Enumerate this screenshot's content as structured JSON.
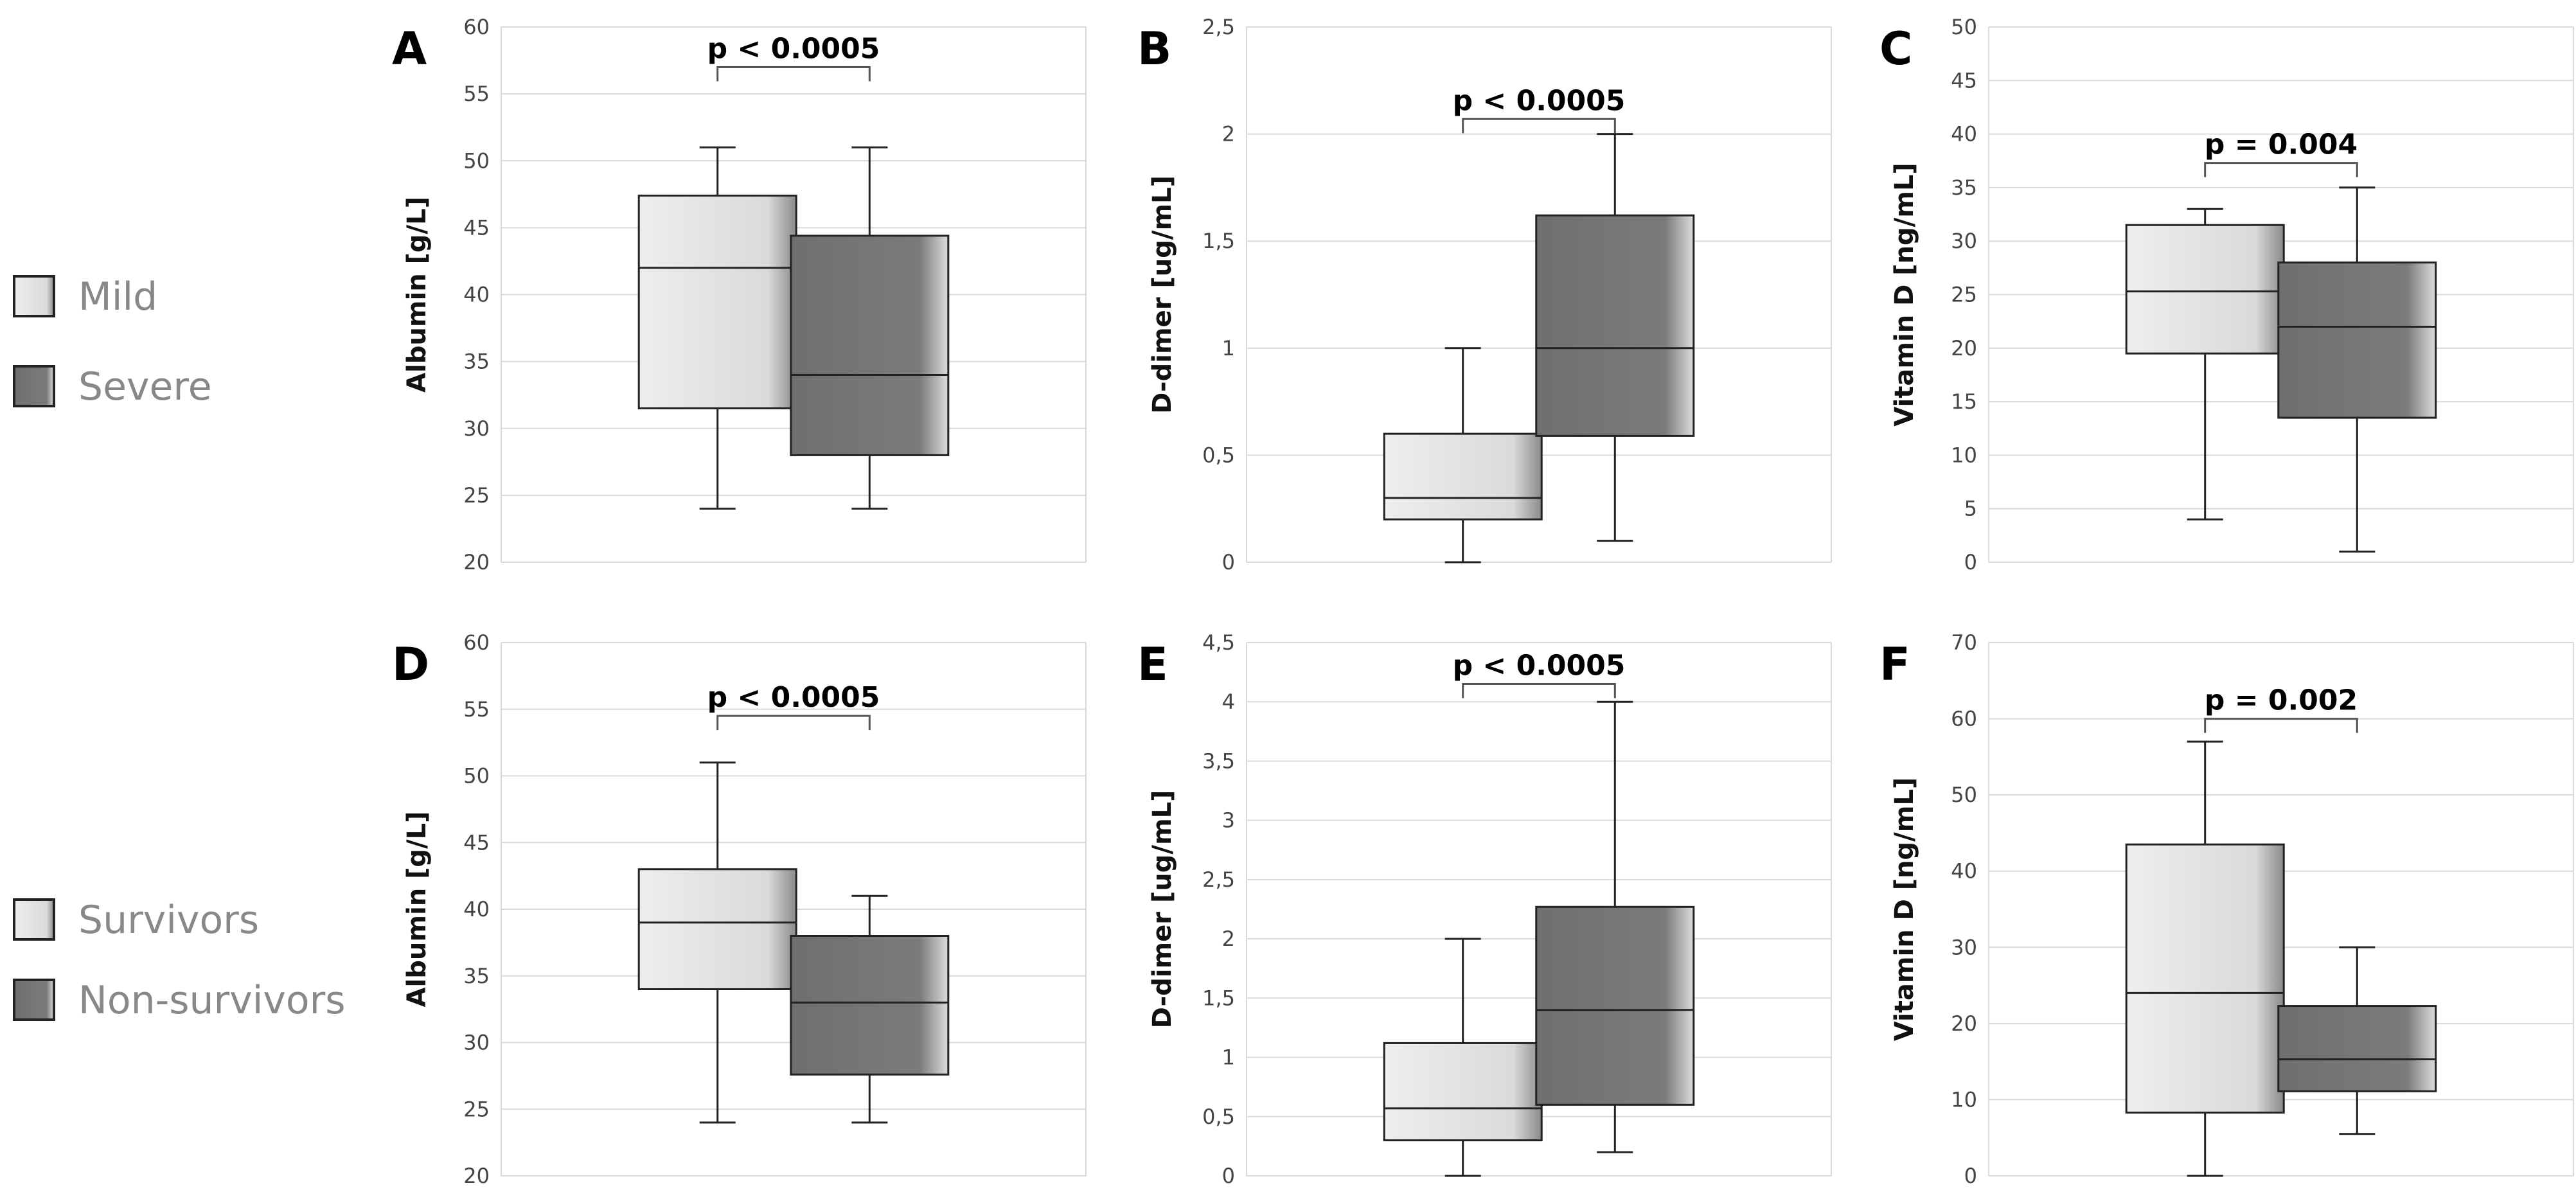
{
  "legends": [
    {
      "items": [
        {
          "label": "Mild",
          "color": "mild"
        },
        {
          "label": "Severe",
          "color": "severe"
        }
      ]
    },
    {
      "items": [
        {
          "label": "Survivors",
          "color": "mild"
        },
        {
          "label": "Non-survivors",
          "color": "severe"
        }
      ]
    }
  ],
  "colors": {
    "mild": "#d9d9d9",
    "severe": "#7a7a7a",
    "edge": "#222222",
    "grid": "#d9d9d9"
  },
  "chart_data": [
    {
      "type": "box",
      "panel_label": "A",
      "ylabel": "Albumin [g/L]",
      "ylim": [
        20,
        60
      ],
      "ticks": [
        "20",
        "25",
        "30",
        "35",
        "40",
        "45",
        "50",
        "55",
        "60"
      ],
      "p_text": "p < 0.0005",
      "p_y": 57,
      "series": [
        {
          "name": "Mild",
          "min": 24,
          "q1": 31.5,
          "median": 42,
          "q3": 47.4,
          "max": 51
        },
        {
          "name": "Severe",
          "min": 24,
          "q1": 28,
          "median": 34,
          "q3": 44.4,
          "max": 51
        }
      ]
    },
    {
      "type": "box",
      "panel_label": "B",
      "ylabel": "D-dimer [ug/mL]",
      "ylim": [
        0,
        2.5
      ],
      "ticks": [
        "0",
        "0,5",
        "1",
        "1,5",
        "2",
        "2,5"
      ],
      "p_text": "p < 0.0005",
      "p_y": 2.07,
      "series": [
        {
          "name": "Mild",
          "min": 0,
          "q1": 0.2,
          "median": 0.3,
          "q3": 0.6,
          "max": 1.0
        },
        {
          "name": "Severe",
          "min": 0.1,
          "q1": 0.59,
          "median": 1.0,
          "q3": 1.62,
          "max": 2.0
        }
      ]
    },
    {
      "type": "box",
      "panel_label": "C",
      "ylabel": "Vitamin D [ng/mL]",
      "ylim": [
        0,
        50
      ],
      "ticks": [
        "0",
        "5",
        "10",
        "15",
        "20",
        "25",
        "30",
        "35",
        "40",
        "45",
        "50"
      ],
      "p_text": "p = 0.004",
      "p_y": 37.3,
      "series": [
        {
          "name": "Mild",
          "min": 4,
          "q1": 19.5,
          "median": 25.3,
          "q3": 31.5,
          "max": 33
        },
        {
          "name": "Severe",
          "min": 1,
          "q1": 13.5,
          "median": 22,
          "q3": 28,
          "max": 35
        }
      ]
    },
    {
      "type": "box",
      "panel_label": "D",
      "ylabel": "Albumin [g/L]",
      "ylim": [
        20,
        60
      ],
      "ticks": [
        "20",
        "25",
        "30",
        "35",
        "40",
        "45",
        "50",
        "55",
        "60"
      ],
      "p_text": "p < 0.0005",
      "p_y": 54.5,
      "series": [
        {
          "name": "Survivors",
          "min": 24,
          "q1": 34,
          "median": 39,
          "q3": 43,
          "max": 51
        },
        {
          "name": "Non-survivors",
          "min": 24,
          "q1": 27.6,
          "median": 33,
          "q3": 38,
          "max": 41
        }
      ]
    },
    {
      "type": "box",
      "panel_label": "E",
      "ylabel": "D-dimer [ug/mL]",
      "ylim": [
        0,
        4.5
      ],
      "ticks": [
        "0",
        "0,5",
        "1",
        "1,5",
        "2",
        "2,5",
        "3",
        "3,5",
        "4",
        "4,5"
      ],
      "p_text": "p < 0.0005",
      "p_y": 4.15,
      "series": [
        {
          "name": "Survivors",
          "min": 0,
          "q1": 0.3,
          "median": 0.57,
          "q3": 1.12,
          "max": 2.0
        },
        {
          "name": "Non-survivors",
          "min": 0.2,
          "q1": 0.6,
          "median": 1.4,
          "q3": 2.27,
          "max": 4.0
        }
      ]
    },
    {
      "type": "box",
      "panel_label": "F",
      "ylabel": "Vitamin D [ng/mL]",
      "ylim": [
        0,
        70
      ],
      "ticks": [
        "0",
        "10",
        "20",
        "30",
        "40",
        "50",
        "60",
        "70"
      ],
      "p_text": "p = 0.002",
      "p_y": 60,
      "series": [
        {
          "name": "Survivors",
          "min": 0,
          "q1": 8.3,
          "median": 24,
          "q3": 43.5,
          "max": 57
        },
        {
          "name": "Non-survivors",
          "min": 5.5,
          "q1": 11.1,
          "median": 15.3,
          "q3": 22.3,
          "max": 30
        }
      ]
    }
  ]
}
